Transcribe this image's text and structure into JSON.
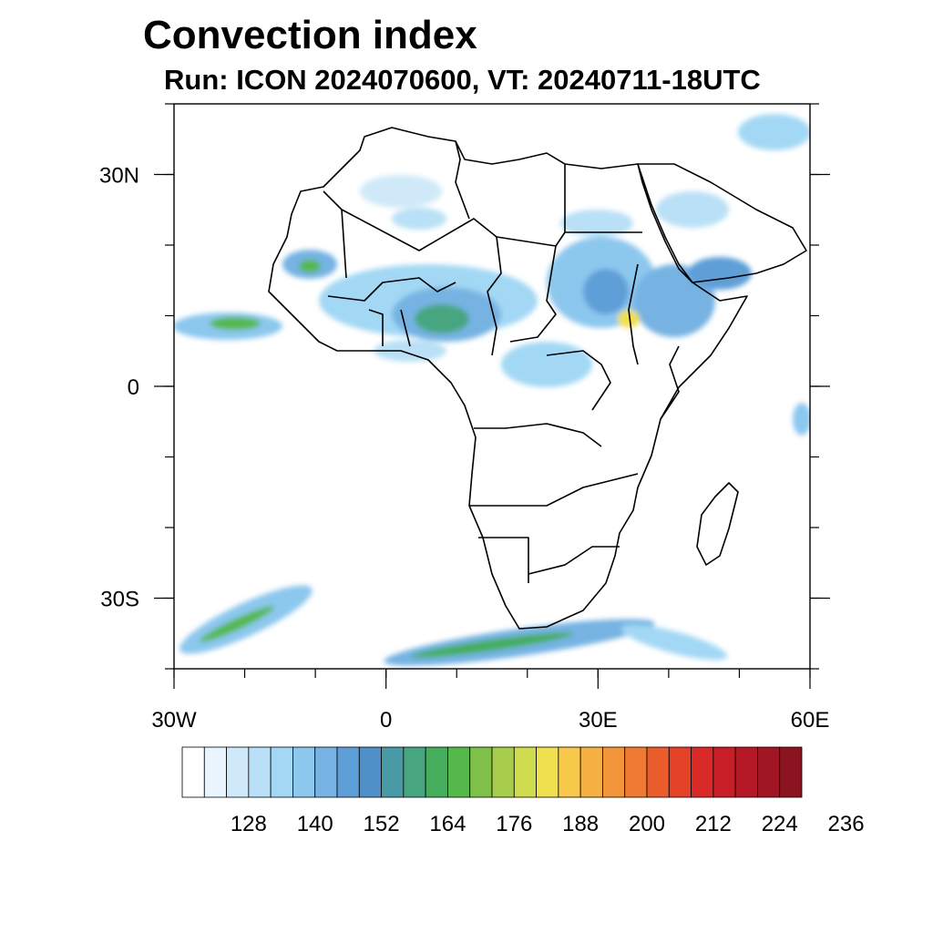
{
  "title": "Convection index",
  "subtitle": "Run: ICON 2024070600,  VT: 20240711-18UTC",
  "map": {
    "lon_range": [
      -30,
      60
    ],
    "lat_range": [
      -40,
      40
    ],
    "lon_ticks": [
      {
        "value": -30,
        "label": "30W"
      },
      {
        "value": 0,
        "label": "0"
      },
      {
        "value": 30,
        "label": "30E"
      },
      {
        "value": 60,
        "label": "60E"
      }
    ],
    "lat_ticks": [
      {
        "value": 30,
        "label": "30N"
      },
      {
        "value": 0,
        "label": "0"
      },
      {
        "value": -30,
        "label": "30S"
      }
    ],
    "minor_lon_step": 10,
    "minor_lat_step": 10
  },
  "colorbar": {
    "labels": [
      "128",
      "140",
      "152",
      "164",
      "176",
      "188",
      "200",
      "212",
      "224",
      "236"
    ],
    "colors": [
      "#ffffff",
      "#e8f5fc",
      "#cfe9f8",
      "#b9e0f6",
      "#a3d8f4",
      "#8cc7ee",
      "#76b3e3",
      "#5f9fd8",
      "#4f90c8",
      "#4a9aa5",
      "#47a67f",
      "#45ad5c",
      "#55b84a",
      "#7fc04b",
      "#a8cc4c",
      "#cfdc4f",
      "#f0e050",
      "#f8c84a",
      "#f5b043",
      "#f3963b",
      "#ef7a33",
      "#ea5c2c",
      "#e34128",
      "#d92a27",
      "#c81e27",
      "#b51926",
      "#a01624",
      "#8b1420"
    ]
  }
}
